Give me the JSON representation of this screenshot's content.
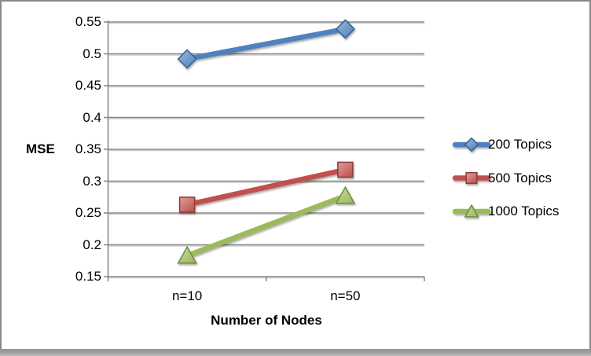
{
  "chart_data": {
    "type": "line",
    "title": "",
    "xlabel": "Number of Nodes",
    "ylabel": "MSE",
    "categories": [
      "n=10",
      "n=50"
    ],
    "series": [
      {
        "name": "200 Topics",
        "color": "#4F81BD",
        "border_color": "#35618F",
        "marker": "diamond",
        "values": [
          0.492,
          0.539
        ]
      },
      {
        "name": "500 Topics",
        "color": "#C0504D",
        "border_color": "#8E3A37",
        "marker": "square",
        "values": [
          0.263,
          0.318
        ]
      },
      {
        "name": "1000 Topics",
        "color": "#9BBB59",
        "border_color": "#6F8C3C",
        "marker": "triangle",
        "values": [
          0.183,
          0.277
        ]
      }
    ],
    "ylim": [
      0.15,
      0.55
    ],
    "ytick_step": 0.05,
    "yticks": [
      0.55,
      0.5,
      0.45,
      0.4,
      0.35,
      0.3,
      0.25,
      0.2,
      0.15
    ],
    "grid": true,
    "legend_position": "right",
    "axis_color": "#868686",
    "gridline_color": "#868686",
    "gridline_shadow_color": "#cccccc"
  }
}
